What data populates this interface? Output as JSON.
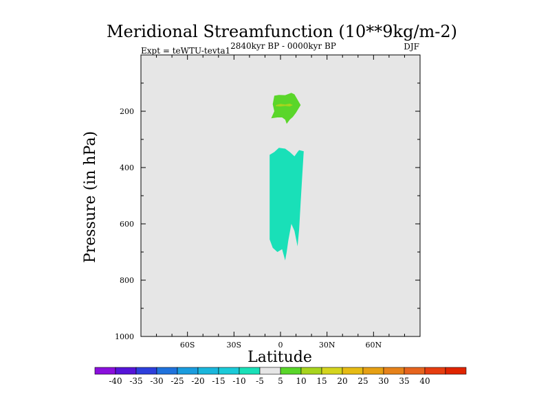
{
  "chart_data": {
    "type": "contour",
    "title": "Meridional Streamfunction (10**9kg/m-2)",
    "subtitle_left": "Expt = teWTU-tevta1",
    "subtitle_center": "2840kyr BP - 0000kyr BP",
    "subtitle_right": "DJF",
    "xlabel": "Latitude",
    "ylabel": "Pressure (in hPa)",
    "xlim": [
      -90,
      90
    ],
    "ylim": [
      1000,
      0
    ],
    "x_ticks": [
      {
        "value": -60,
        "label": "60S"
      },
      {
        "value": -30,
        "label": "30S"
      },
      {
        "value": 0,
        "label": "0"
      },
      {
        "value": 30,
        "label": "30N"
      },
      {
        "value": 60,
        "label": "60N"
      }
    ],
    "y_ticks": [
      {
        "value": 200,
        "label": "200"
      },
      {
        "value": 400,
        "label": "400"
      },
      {
        "value": 600,
        "label": "600"
      },
      {
        "value": 800,
        "label": "800"
      },
      {
        "value": 1000,
        "label": "1000"
      }
    ],
    "background_color": "#e6e6e6",
    "regions": [
      {
        "name": "positive-cell-5-10",
        "color": "#5ad62a",
        "points": [
          [
            -5,
            175
          ],
          [
            -4,
            145
          ],
          [
            -1,
            142
          ],
          [
            3,
            143
          ],
          [
            7,
            135
          ],
          [
            9,
            140
          ],
          [
            13,
            178
          ],
          [
            10,
            205
          ],
          [
            8,
            220
          ],
          [
            6,
            230
          ],
          [
            4,
            245
          ],
          [
            3,
            230
          ],
          [
            1,
            222
          ],
          [
            -2,
            222
          ],
          [
            -6,
            225
          ],
          [
            -4,
            200
          ]
        ]
      },
      {
        "name": "positive-core-10-15",
        "color": "#a8d41e",
        "points": [
          [
            -3,
            178
          ],
          [
            0,
            174
          ],
          [
            3,
            176
          ],
          [
            6,
            173
          ],
          [
            8,
            178
          ],
          [
            6,
            183
          ],
          [
            3,
            181
          ],
          [
            0,
            183
          ],
          [
            -3,
            182
          ]
        ]
      },
      {
        "name": "negative-cell-minus5-minus10",
        "color": "#19e0b8",
        "points": [
          [
            -7,
            355
          ],
          [
            -4,
            345
          ],
          [
            -1,
            330
          ],
          [
            3,
            333
          ],
          [
            6,
            345
          ],
          [
            9,
            360
          ],
          [
            11,
            345
          ],
          [
            12,
            338
          ],
          [
            15,
            342
          ],
          [
            14,
            430
          ],
          [
            13,
            525
          ],
          [
            12,
            620
          ],
          [
            11,
            680
          ],
          [
            9,
            625
          ],
          [
            7,
            600
          ],
          [
            5,
            660
          ],
          [
            4,
            700
          ],
          [
            3,
            730
          ],
          [
            1,
            690
          ],
          [
            -2,
            700
          ],
          [
            -5,
            685
          ],
          [
            -7,
            655
          ]
        ]
      }
    ],
    "colorbar": {
      "colors": [
        "#8a0fdc",
        "#5514d8",
        "#2d3fdc",
        "#1f72dc",
        "#1a9cde",
        "#1ab6dc",
        "#1acad8",
        "#19e0b8",
        "#e6e6e6",
        "#5ad62a",
        "#a8d41e",
        "#d4d41e",
        "#e6bb14",
        "#e6a014",
        "#e6821a",
        "#e6641e",
        "#e63d10",
        "#e02400"
      ],
      "labels": [
        "-40",
        "-35",
        "-30",
        "-25",
        "-20",
        "-15",
        "-10",
        "-5",
        "5",
        "10",
        "15",
        "20",
        "25",
        "30",
        "35",
        "40"
      ]
    }
  }
}
